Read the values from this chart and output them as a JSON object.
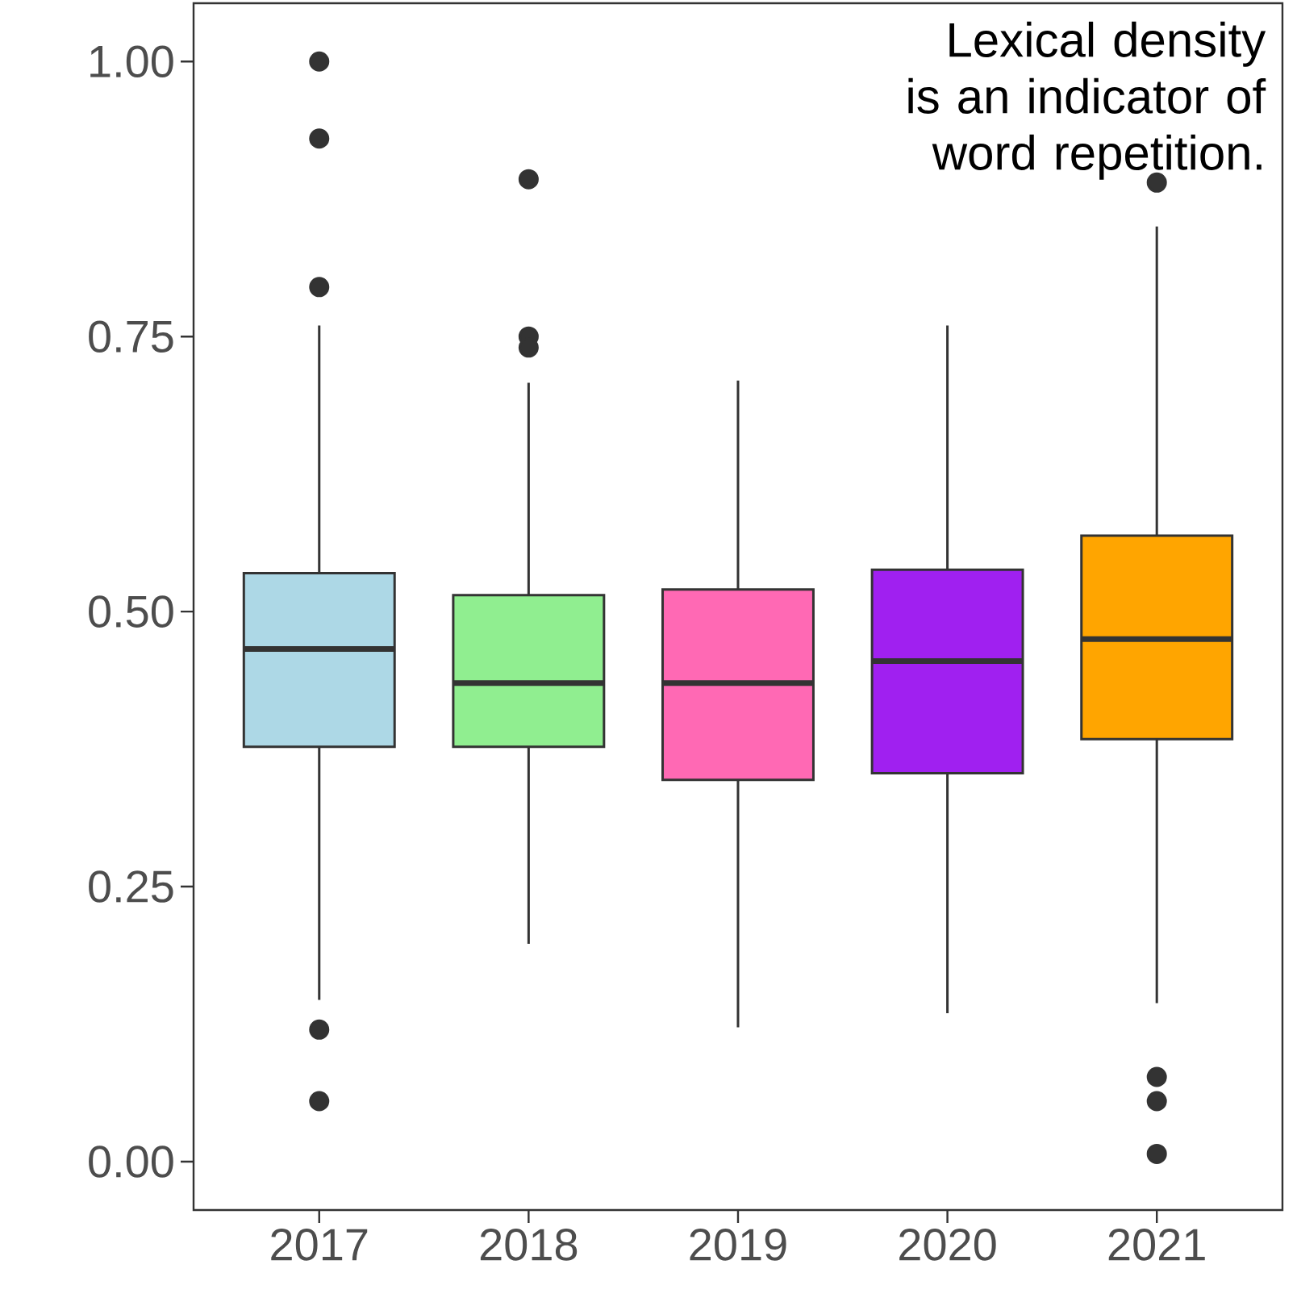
{
  "chart_data": {
    "type": "box",
    "categories": [
      "2017",
      "2018",
      "2019",
      "2020",
      "2021"
    ],
    "colors": [
      "#add8e6",
      "#90ee90",
      "#ff69b4",
      "#a020f0",
      "#ffa500"
    ],
    "boxes": [
      {
        "low": 0.147,
        "q1": 0.377,
        "median": 0.466,
        "q3": 0.535,
        "high": 0.76,
        "outliers": [
          1.0,
          0.93,
          0.795,
          0.12,
          0.055
        ]
      },
      {
        "low": 0.198,
        "q1": 0.377,
        "median": 0.435,
        "q3": 0.515,
        "high": 0.708,
        "outliers": [
          0.893,
          0.75,
          0.74
        ]
      },
      {
        "low": 0.122,
        "q1": 0.347,
        "median": 0.435,
        "q3": 0.52,
        "high": 0.71
      },
      {
        "low": 0.135,
        "q1": 0.353,
        "median": 0.455,
        "q3": 0.538,
        "high": 0.76
      },
      {
        "low": 0.144,
        "q1": 0.384,
        "median": 0.475,
        "q3": 0.569,
        "high": 0.85,
        "outliers": [
          0.89,
          0.077,
          0.055,
          0.007
        ]
      }
    ],
    "ylim": [
      -0.044,
      1.053
    ],
    "yticks": [
      {
        "value": 0,
        "label": "0.00"
      },
      {
        "value": 0.25,
        "label": "0.25"
      },
      {
        "value": 0.5,
        "label": "0.50"
      },
      {
        "value": 0.75,
        "label": "0.75"
      },
      {
        "value": 1,
        "label": "1.00"
      }
    ],
    "annotations": [
      "Lexical density is an indicator of word repetition."
    ],
    "grid": false
  }
}
